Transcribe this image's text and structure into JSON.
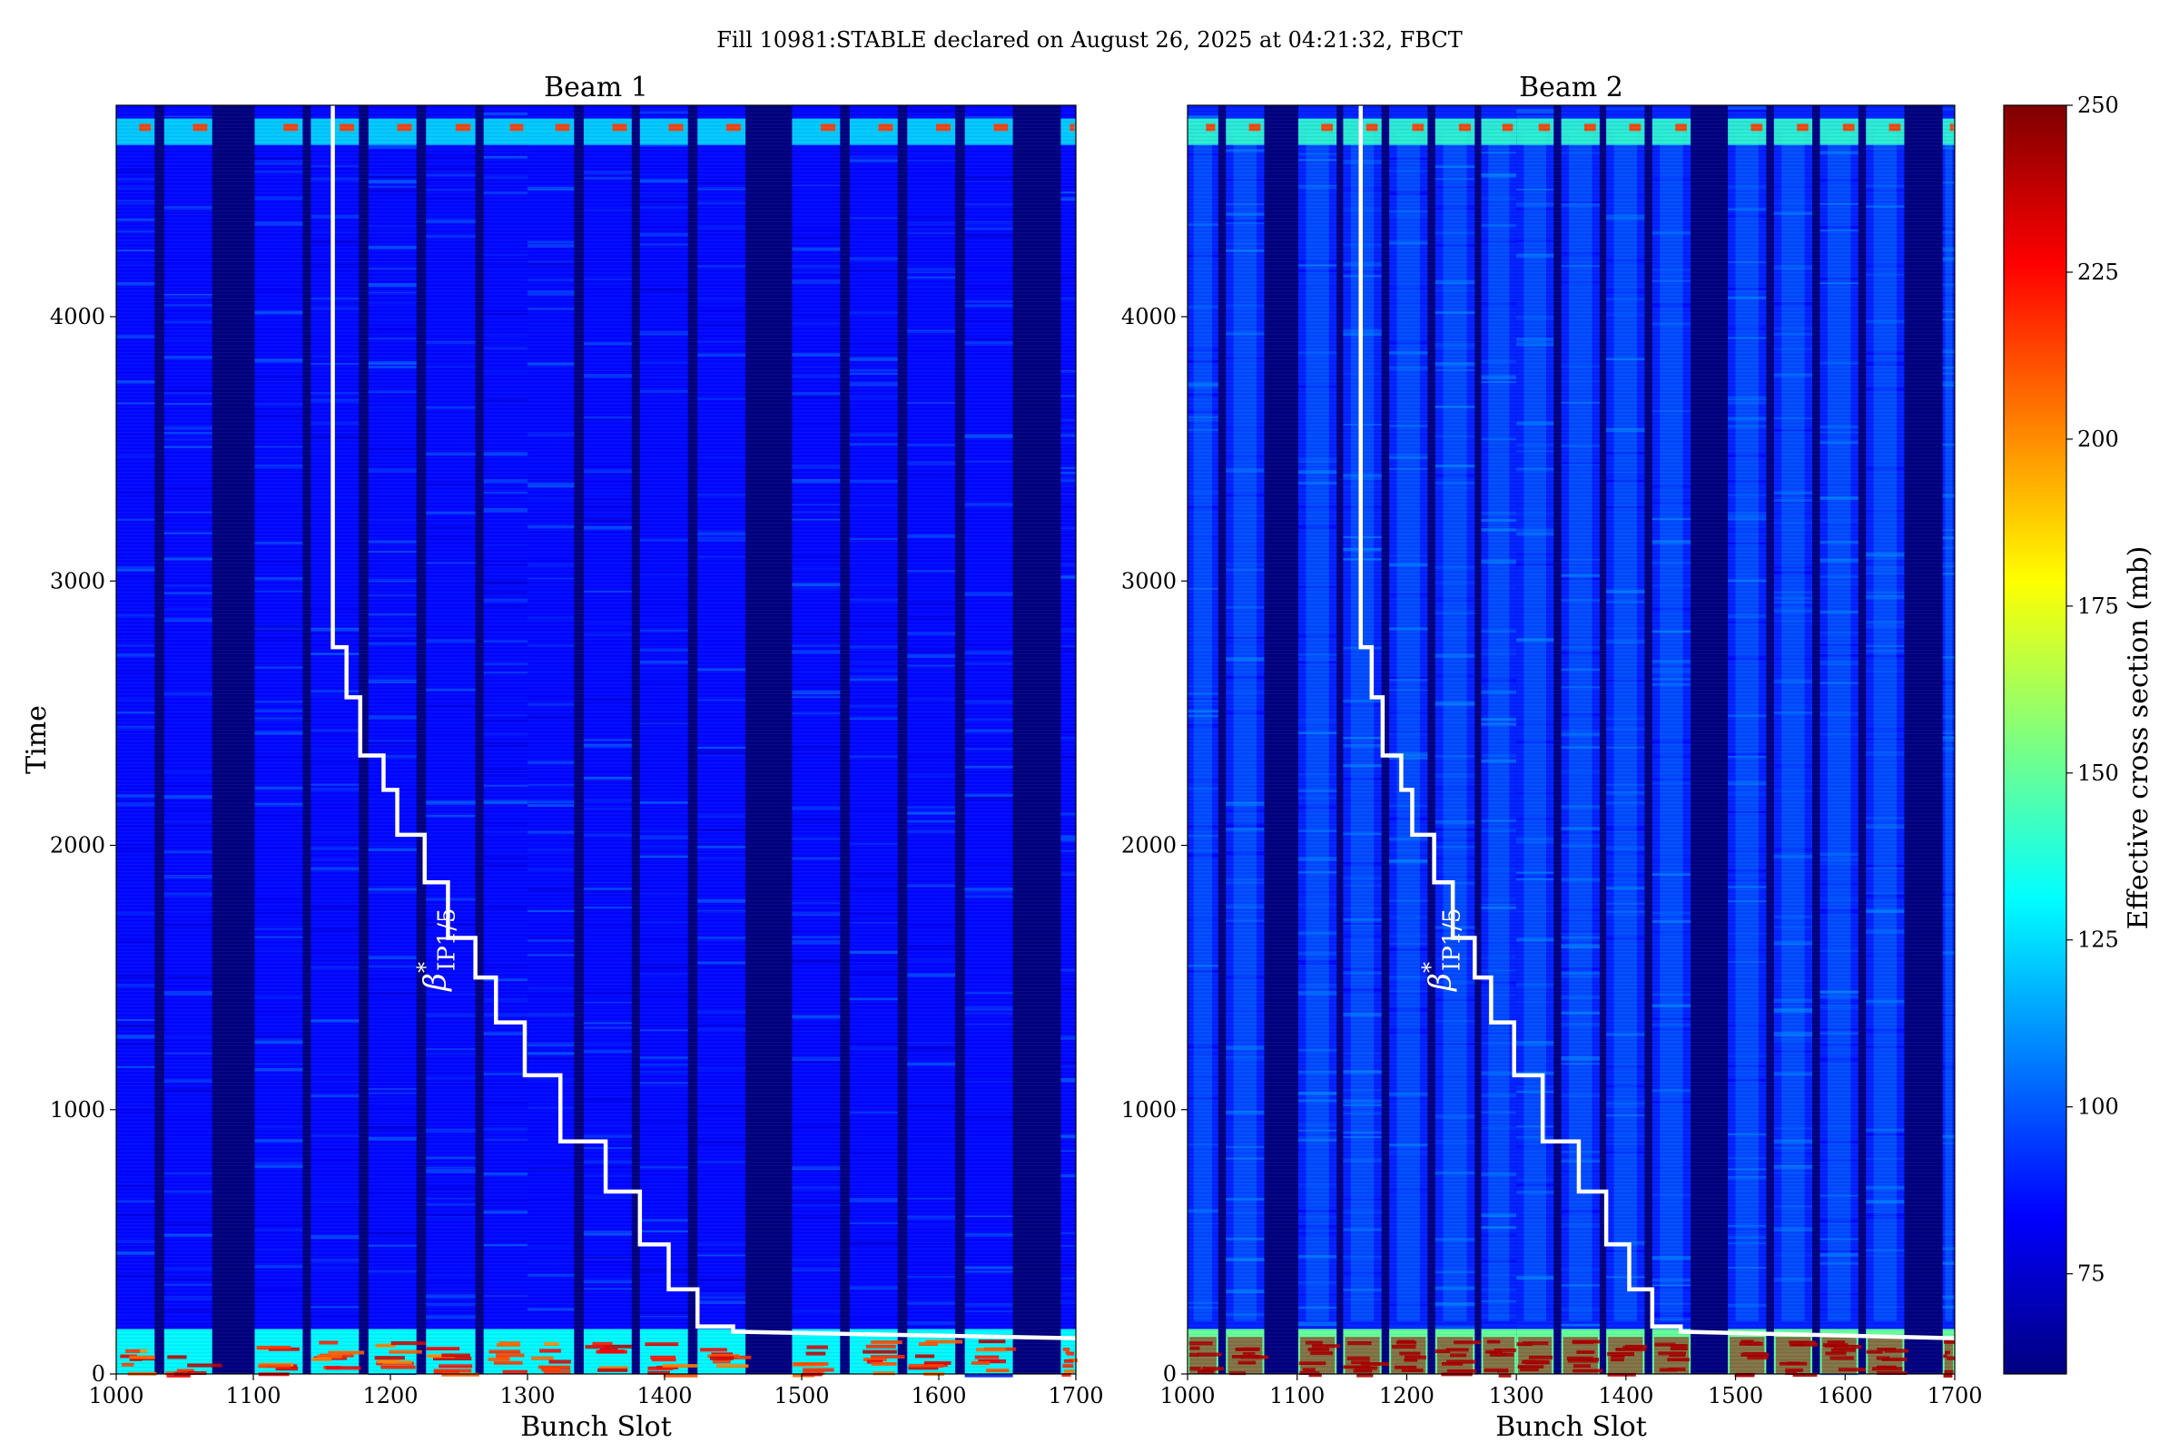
{
  "chart_data": {
    "type": "heatmap",
    "title": "Fill 10981:STABLE declared on August 26, 2025 at 04:21:32, FBCT",
    "shared_ylabel": "Time",
    "colorbar": {
      "label": "Effective cross section (mb)",
      "range": [
        60,
        250
      ],
      "ticks": [
        75,
        100,
        125,
        150,
        175,
        200,
        225,
        250
      ],
      "colormap": "jet",
      "colormap_stops": [
        "#00007f",
        "#0000ff",
        "#007fff",
        "#00ffff",
        "#7fff7f",
        "#ffff00",
        "#ff7f00",
        "#ff0000",
        "#7f0000"
      ]
    },
    "annotation": {
      "base": "β",
      "superscript": "*",
      "subscript": "IP1/5",
      "color": "#ffffff"
    },
    "empty_slot_color": "#00007f",
    "panels": [
      {
        "title": "Beam 1",
        "xlabel": "Bunch Slot",
        "xlim": [
          1000,
          1700
        ],
        "ylim": [
          0,
          4800
        ],
        "xticks": [
          1000,
          1100,
          1200,
          1300,
          1400,
          1500,
          1600,
          1700
        ],
        "yticks": [
          0,
          1000,
          2000,
          3000,
          4000
        ],
        "filled_bunch_ranges": [
          [
            1000,
            1028
          ],
          [
            1035,
            1070
          ],
          [
            1101,
            1136
          ],
          [
            1142,
            1177
          ],
          [
            1184,
            1219
          ],
          [
            1226,
            1262
          ],
          [
            1268,
            1300
          ],
          [
            1300,
            1334
          ],
          [
            1341,
            1376
          ],
          [
            1382,
            1417
          ],
          [
            1424,
            1459
          ],
          [
            1493,
            1528
          ],
          [
            1535,
            1570
          ],
          [
            1577,
            1612
          ],
          [
            1619,
            1654
          ],
          [
            1689,
            1700
          ]
        ],
        "typical_cross_section_mb": 85,
        "beta_star_step_line": [
          [
            1158,
            4800
          ],
          [
            1158,
            2750
          ],
          [
            1168,
            2750
          ],
          [
            1168,
            2560
          ],
          [
            1178,
            2560
          ],
          [
            1178,
            2340
          ],
          [
            1195,
            2340
          ],
          [
            1195,
            2210
          ],
          [
            1205,
            2210
          ],
          [
            1205,
            2040
          ],
          [
            1225,
            2040
          ],
          [
            1225,
            1860
          ],
          [
            1242,
            1860
          ],
          [
            1242,
            1650
          ],
          [
            1262,
            1650
          ],
          [
            1262,
            1500
          ],
          [
            1277,
            1500
          ],
          [
            1277,
            1330
          ],
          [
            1298,
            1330
          ],
          [
            1298,
            1130
          ],
          [
            1324,
            1130
          ],
          [
            1324,
            880
          ],
          [
            1357,
            880
          ],
          [
            1357,
            690
          ],
          [
            1382,
            690
          ],
          [
            1382,
            490
          ],
          [
            1403,
            490
          ],
          [
            1403,
            320
          ],
          [
            1424,
            320
          ],
          [
            1424,
            180
          ],
          [
            1450,
            180
          ],
          [
            1450,
            160
          ],
          [
            1700,
            135
          ]
        ]
      },
      {
        "title": "Beam 2",
        "xlabel": "Bunch Slot",
        "xlim": [
          1000,
          1700
        ],
        "ylim": [
          0,
          4800
        ],
        "xticks": [
          1000,
          1100,
          1200,
          1300,
          1400,
          1500,
          1600,
          1700
        ],
        "yticks": [
          0,
          1000,
          2000,
          3000,
          4000
        ],
        "filled_bunch_ranges": [
          [
            1000,
            1028
          ],
          [
            1035,
            1070
          ],
          [
            1101,
            1136
          ],
          [
            1142,
            1177
          ],
          [
            1184,
            1219
          ],
          [
            1226,
            1262
          ],
          [
            1268,
            1300
          ],
          [
            1300,
            1334
          ],
          [
            1341,
            1376
          ],
          [
            1382,
            1417
          ],
          [
            1424,
            1459
          ],
          [
            1493,
            1528
          ],
          [
            1535,
            1570
          ],
          [
            1577,
            1612
          ],
          [
            1619,
            1654
          ],
          [
            1689,
            1700
          ]
        ],
        "typical_cross_section_mb": 90,
        "beta_star_step_line": [
          [
            1158,
            4800
          ],
          [
            1158,
            2750
          ],
          [
            1168,
            2750
          ],
          [
            1168,
            2560
          ],
          [
            1178,
            2560
          ],
          [
            1178,
            2340
          ],
          [
            1195,
            2340
          ],
          [
            1195,
            2210
          ],
          [
            1205,
            2210
          ],
          [
            1205,
            2040
          ],
          [
            1225,
            2040
          ],
          [
            1225,
            1860
          ],
          [
            1242,
            1860
          ],
          [
            1242,
            1650
          ],
          [
            1262,
            1650
          ],
          [
            1262,
            1500
          ],
          [
            1277,
            1500
          ],
          [
            1277,
            1330
          ],
          [
            1298,
            1330
          ],
          [
            1298,
            1130
          ],
          [
            1324,
            1130
          ],
          [
            1324,
            880
          ],
          [
            1357,
            880
          ],
          [
            1357,
            690
          ],
          [
            1382,
            690
          ],
          [
            1382,
            490
          ],
          [
            1403,
            490
          ],
          [
            1403,
            320
          ],
          [
            1424,
            320
          ],
          [
            1424,
            180
          ],
          [
            1450,
            180
          ],
          [
            1450,
            160
          ],
          [
            1700,
            135
          ]
        ]
      }
    ]
  }
}
